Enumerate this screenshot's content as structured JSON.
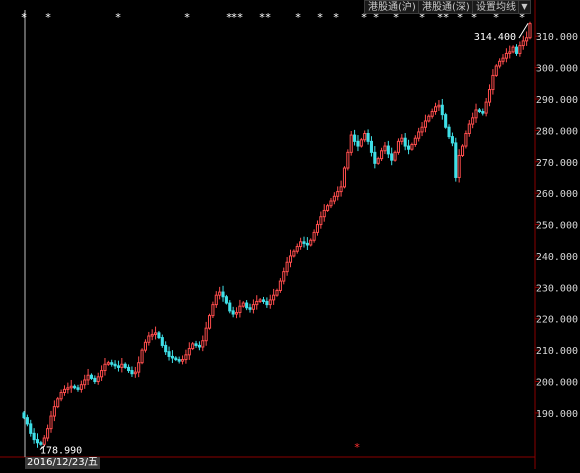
{
  "toolbar": {
    "buttons": [
      "港股通(沪)",
      "港股通(深)",
      "设置均线"
    ],
    "dropdown_icon": "triangle-down"
  },
  "annotations": {
    "high_label": "314.400",
    "low_label": "178.990",
    "cursor_date": "2016/12/23/五"
  },
  "colors": {
    "up": "#ff4d4d",
    "down": "#3fe0e8",
    "axis": "#8a0000",
    "star": "#ffffff"
  },
  "chart_data": {
    "type": "candlestick",
    "title": "",
    "y_ticks": [
      "190.000",
      "200.000",
      "210.000",
      "220.000",
      "230.000",
      "240.000",
      "250.000",
      "260.000",
      "270.000",
      "280.000",
      "290.000",
      "300.000",
      "310.000"
    ],
    "ylim": [
      176.6,
      317.7
    ],
    "high": 314.4,
    "low": 178.99,
    "close_series": [
      188.5,
      186.5,
      183.5,
      181.5,
      180.5,
      180.0,
      182.0,
      185.0,
      189.0,
      192.0,
      194.5,
      196.5,
      197.5,
      198.0,
      198.5,
      198.0,
      197.5,
      199.0,
      200.5,
      202.0,
      201.0,
      200.0,
      201.5,
      203.5,
      205.5,
      206.0,
      205.5,
      205.0,
      204.5,
      205.5,
      204.5,
      203.5,
      202.5,
      203.0,
      206.0,
      210.0,
      212.5,
      214.5,
      215.0,
      215.5,
      214.0,
      211.5,
      209.5,
      208.0,
      207.5,
      207.0,
      206.5,
      207.0,
      208.5,
      210.5,
      212.0,
      211.5,
      211.0,
      213.0,
      217.0,
      221.0,
      224.5,
      227.5,
      228.5,
      227.0,
      225.0,
      222.5,
      221.5,
      222.0,
      224.0,
      225.0,
      223.5,
      223.0,
      224.5,
      225.5,
      226.0,
      225.5,
      224.5,
      226.0,
      227.5,
      229.0,
      232.0,
      235.0,
      238.0,
      240.0,
      241.5,
      243.0,
      244.5,
      244.0,
      243.5,
      245.0,
      247.5,
      250.0,
      252.5,
      254.5,
      256.0,
      257.5,
      259.0,
      260.5,
      262.0,
      268.0,
      273.0,
      278.5,
      276.5,
      275.0,
      277.0,
      279.0,
      276.5,
      273.0,
      269.5,
      271.0,
      273.5,
      275.0,
      272.5,
      270.5,
      273.0,
      276.5,
      277.5,
      275.0,
      274.0,
      275.5,
      277.5,
      279.5,
      281.0,
      283.0,
      284.5,
      286.0,
      287.5,
      288.0,
      285.0,
      281.0,
      278.0,
      276.0,
      265.0,
      272.0,
      275.0,
      279.0,
      282.0,
      284.0,
      286.5,
      286.0,
      285.5,
      289.0,
      293.0,
      297.5,
      300.5,
      302.0,
      303.0,
      304.5,
      305.0,
      306.5,
      304.5,
      307.0,
      308.5,
      309.5,
      314.0
    ]
  },
  "stars": {
    "top_count": 22,
    "bottom_count": 1
  }
}
